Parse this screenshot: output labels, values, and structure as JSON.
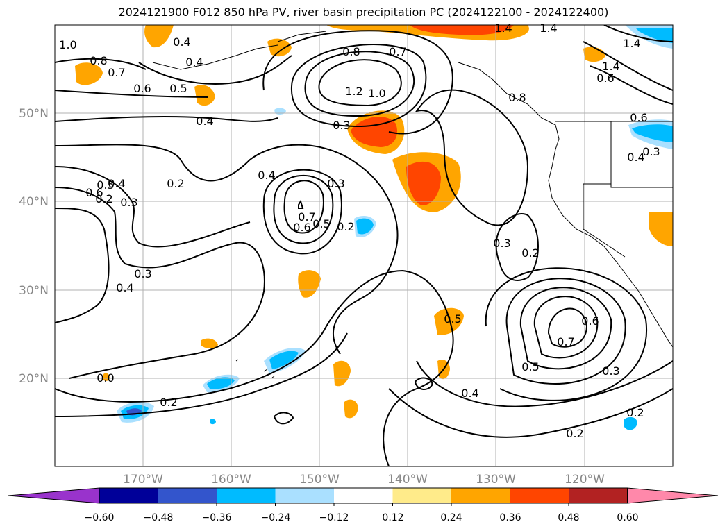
{
  "title": "2024121900 F012 850 hPa PV, river basin precipitation PC (2024122100 - 2024122400)",
  "map": {
    "lon_range": [
      -180,
      -110
    ],
    "lat_range": [
      10,
      60
    ],
    "lat_labels": [
      "50°N",
      "40°N",
      "30°N",
      "20°N"
    ],
    "lon_labels": [
      "170°W",
      "160°W",
      "150°W",
      "140°W",
      "130°W",
      "120°W"
    ],
    "grid_color": "#b0b0b0",
    "tick_label_color": "#888888"
  },
  "contour_labels": [
    "1.0",
    "0.8",
    "0.7",
    "0.4",
    "0.6",
    "0.5",
    "0.4",
    "0.4",
    "0.2",
    "0.8",
    "0.7",
    "1.2",
    "1.0",
    "0.3",
    "1.4",
    "1.4",
    "1.4",
    "1.4",
    "0.6",
    "0.8",
    "0.6",
    "0.3",
    "0.4",
    "0.4",
    "0.3",
    "0.6",
    "0.5",
    "0.4",
    "0.3",
    "0.2",
    "0.7",
    "0.6",
    "0.5",
    "0.2",
    "0.3",
    "0.4",
    "0.3",
    "0.2",
    "0.7",
    "0.6",
    "0.5",
    "0.3",
    "0.5",
    "0.4",
    "0.2",
    "0.2",
    "0.2",
    "0.0"
  ],
  "colorbar": {
    "colors": [
      "#9933cc",
      "#000099",
      "#3355cc",
      "#00bbff",
      "#aae0ff",
      "#ffffff",
      "#ffeb8a",
      "#ffa500",
      "#ff4500",
      "#b22222",
      "#ff88aa"
    ],
    "ticks": [
      "−0.60",
      "−0.48",
      "−0.36",
      "−0.24",
      "−0.12",
      "0.12",
      "0.24",
      "0.36",
      "0.48",
      "0.60"
    ]
  }
}
